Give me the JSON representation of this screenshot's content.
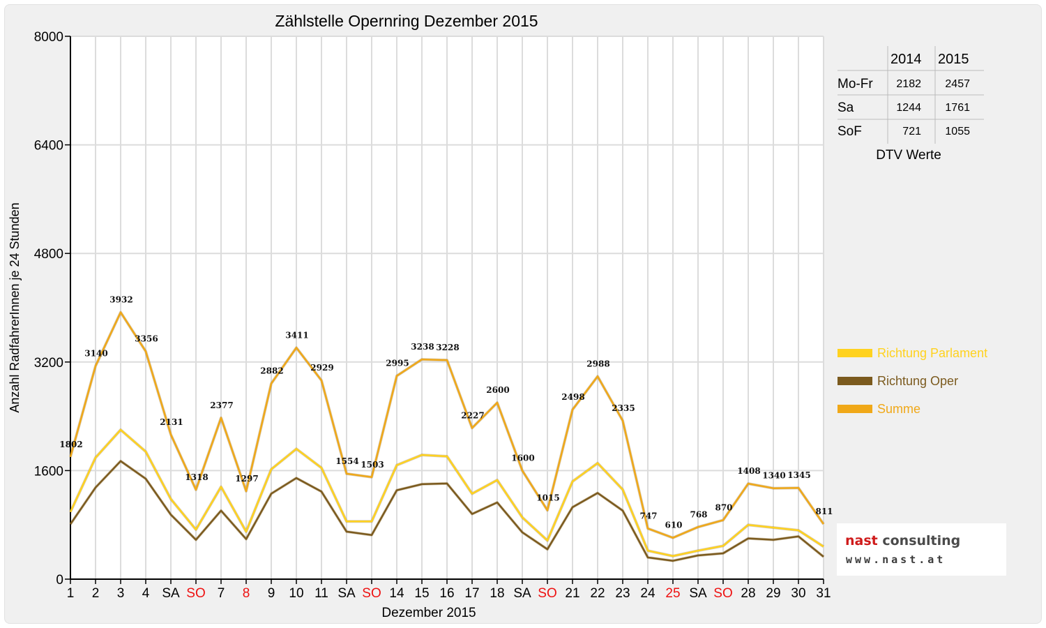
{
  "chart_data": {
    "type": "line",
    "title": "Zählstelle Opernring Dezember 2015",
    "xlabel": "Dezember 2015",
    "ylabel": "Anzahl RadfahrerInnen je 24 Stunden",
    "ylim": [
      0,
      8000
    ],
    "yticks": [
      0,
      1600,
      3200,
      4800,
      6400,
      8000
    ],
    "grid": true,
    "legend_position": "right",
    "categories": [
      "1",
      "2",
      "3",
      "4",
      "SA",
      "SO",
      "7",
      "8",
      "9",
      "10",
      "11",
      "SA",
      "SO",
      "14",
      "15",
      "16",
      "17",
      "18",
      "SA",
      "SO",
      "21",
      "22",
      "23",
      "24",
      "25",
      "SA",
      "SO",
      "28",
      "29",
      "30",
      "31"
    ],
    "highlighted_categories": [
      5,
      7,
      12,
      19,
      24,
      26
    ],
    "series": [
      {
        "name": "Richtung Parlament",
        "color": "#ffd21f",
        "values": [
          990,
          1790,
          2200,
          1880,
          1180,
          730,
          1360,
          700,
          1620,
          1920,
          1640,
          850,
          850,
          1680,
          1830,
          1810,
          1260,
          1460,
          910,
          570,
          1440,
          1710,
          1320,
          420,
          340,
          420,
          490,
          800,
          760,
          720,
          480
        ]
      },
      {
        "name": "Richtung Oper",
        "color": "#7b5a1e",
        "values": [
          810,
          1350,
          1740,
          1480,
          950,
          580,
          1010,
          590,
          1260,
          1490,
          1290,
          700,
          650,
          1310,
          1400,
          1410,
          960,
          1130,
          690,
          440,
          1060,
          1270,
          1010,
          320,
          270,
          350,
          380,
          600,
          580,
          630,
          330
        ]
      },
      {
        "name": "Summe",
        "color": "#f0a818",
        "labels": true,
        "values": [
          1802,
          3140,
          3932,
          3356,
          2131,
          1318,
          2377,
          1297,
          2882,
          3411,
          2929,
          1554,
          1503,
          2995,
          3238,
          3228,
          2227,
          2600,
          1600,
          1015,
          2498,
          2988,
          2335,
          747,
          610,
          768,
          870,
          1408,
          1340,
          1345,
          811
        ]
      }
    ]
  },
  "dtv_table": {
    "headers": [
      "",
      "2014",
      "2015"
    ],
    "rows": [
      [
        "Mo-Fr",
        "2182",
        "2457"
      ],
      [
        "Sa",
        "1244",
        "1761"
      ],
      [
        "SoF",
        "721",
        "1055"
      ]
    ],
    "caption": "DTV Werte"
  },
  "colors": {
    "holiday_label": "#ee1111",
    "axis": "#000000",
    "grid": "#dcdcdc"
  },
  "logo": {
    "main_part1": "nast ",
    "main_part2": "consulting",
    "sub": "www.nast.at"
  }
}
